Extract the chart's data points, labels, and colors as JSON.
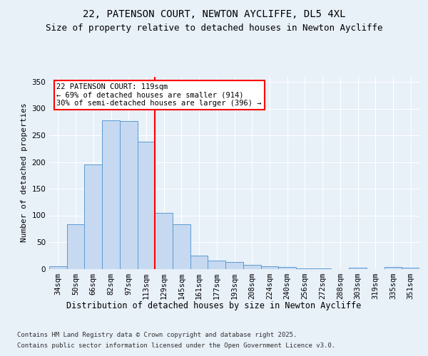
{
  "title1": "22, PATENSON COURT, NEWTON AYCLIFFE, DL5 4XL",
  "title2": "Size of property relative to detached houses in Newton Aycliffe",
  "xlabel": "Distribution of detached houses by size in Newton Aycliffe",
  "ylabel": "Number of detached properties",
  "categories": [
    "34sqm",
    "50sqm",
    "66sqm",
    "82sqm",
    "97sqm",
    "113sqm",
    "129sqm",
    "145sqm",
    "161sqm",
    "177sqm",
    "193sqm",
    "208sqm",
    "224sqm",
    "240sqm",
    "256sqm",
    "272sqm",
    "288sqm",
    "303sqm",
    "319sqm",
    "335sqm",
    "351sqm"
  ],
  "values": [
    5,
    83,
    196,
    278,
    277,
    238,
    105,
    83,
    25,
    16,
    13,
    8,
    5,
    3,
    1,
    1,
    0,
    2,
    0,
    3,
    2
  ],
  "bar_color": "#c6d9f0",
  "bar_edge_color": "#5b9bd5",
  "vline_color": "red",
  "annotation_text": "22 PATENSON COURT: 119sqm\n← 69% of detached houses are smaller (914)\n30% of semi-detached houses are larger (396) →",
  "annotation_box_color": "white",
  "annotation_box_edge_color": "red",
  "ylim": [
    0,
    360
  ],
  "yticks": [
    0,
    50,
    100,
    150,
    200,
    250,
    300,
    350
  ],
  "background_color": "#e8f0f8",
  "plot_bg_color": "#e8f0f8",
  "grid_color": "white",
  "footnote1": "Contains HM Land Registry data © Crown copyright and database right 2025.",
  "footnote2": "Contains public sector information licensed under the Open Government Licence v3.0.",
  "title_fontsize": 10,
  "subtitle_fontsize": 9,
  "xlabel_fontsize": 8.5,
  "ylabel_fontsize": 8,
  "tick_fontsize": 7.5,
  "annotation_fontsize": 7.5,
  "footnote_fontsize": 6.5
}
